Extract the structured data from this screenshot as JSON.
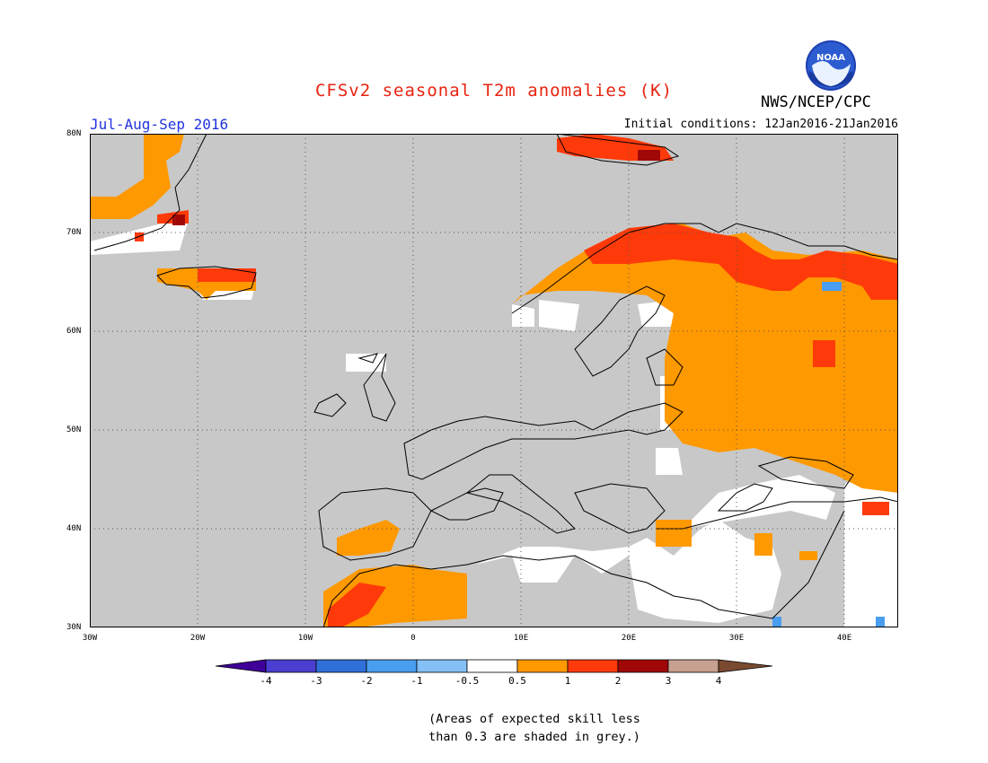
{
  "header": {
    "title": "CFSv2 seasonal T2m anomalies (K)",
    "agency": "NWS/NCEP/CPC",
    "logo_text": "NOAA",
    "season": "Jul-Aug-Sep 2016",
    "initial_conditions": "Initial conditions: 12Jan2016-21Jan2016"
  },
  "map": {
    "region": "Europe / North Atlantic",
    "lat_labels": [
      "80N",
      "70N",
      "60N",
      "50N",
      "40N",
      "30N"
    ],
    "lon_labels": [
      "30W",
      "20W",
      "10W",
      "0",
      "10E",
      "20E",
      "30E",
      "40E"
    ],
    "grid": "dotted",
    "grey_meaning": "skill < 0.3"
  },
  "colorbar": {
    "ticks": [
      "-4",
      "-3",
      "-2",
      "-1",
      "-0.5",
      "0.5",
      "1",
      "2",
      "3",
      "4"
    ],
    "colors": [
      "#3f0099",
      "#4a3fd0",
      "#2f6fd8",
      "#4a9ef0",
      "#84c0f6",
      "#ffffff",
      "#ff9900",
      "#ff3a0a",
      "#a00808",
      "#c8a090",
      "#7a4a30"
    ]
  },
  "footnote": {
    "line1": "(Areas of expected skill less",
    "line2": "than 0.3 are shaded in grey.)"
  }
}
